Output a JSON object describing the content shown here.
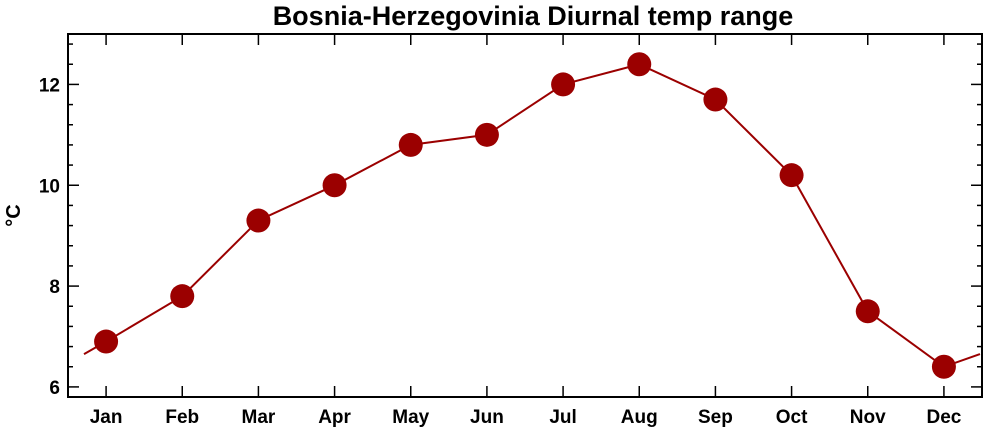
{
  "chart_data": {
    "type": "line",
    "title": "Bosnia-Herzegovinia Diurnal temp range",
    "xlabel": "",
    "ylabel": "°C",
    "categories": [
      "Jan",
      "Feb",
      "Mar",
      "Apr",
      "May",
      "Jun",
      "Jul",
      "Aug",
      "Sep",
      "Oct",
      "Nov",
      "Dec"
    ],
    "series": [
      {
        "values": [
          6.9,
          7.8,
          9.3,
          10.0,
          10.8,
          11.0,
          12.0,
          12.4,
          11.7,
          10.2,
          7.5,
          6.4
        ]
      }
    ],
    "ylim": [
      5.8,
      13.0
    ],
    "yticks": [
      6,
      8,
      10,
      12
    ],
    "grid": false,
    "color": "#9b0000"
  }
}
